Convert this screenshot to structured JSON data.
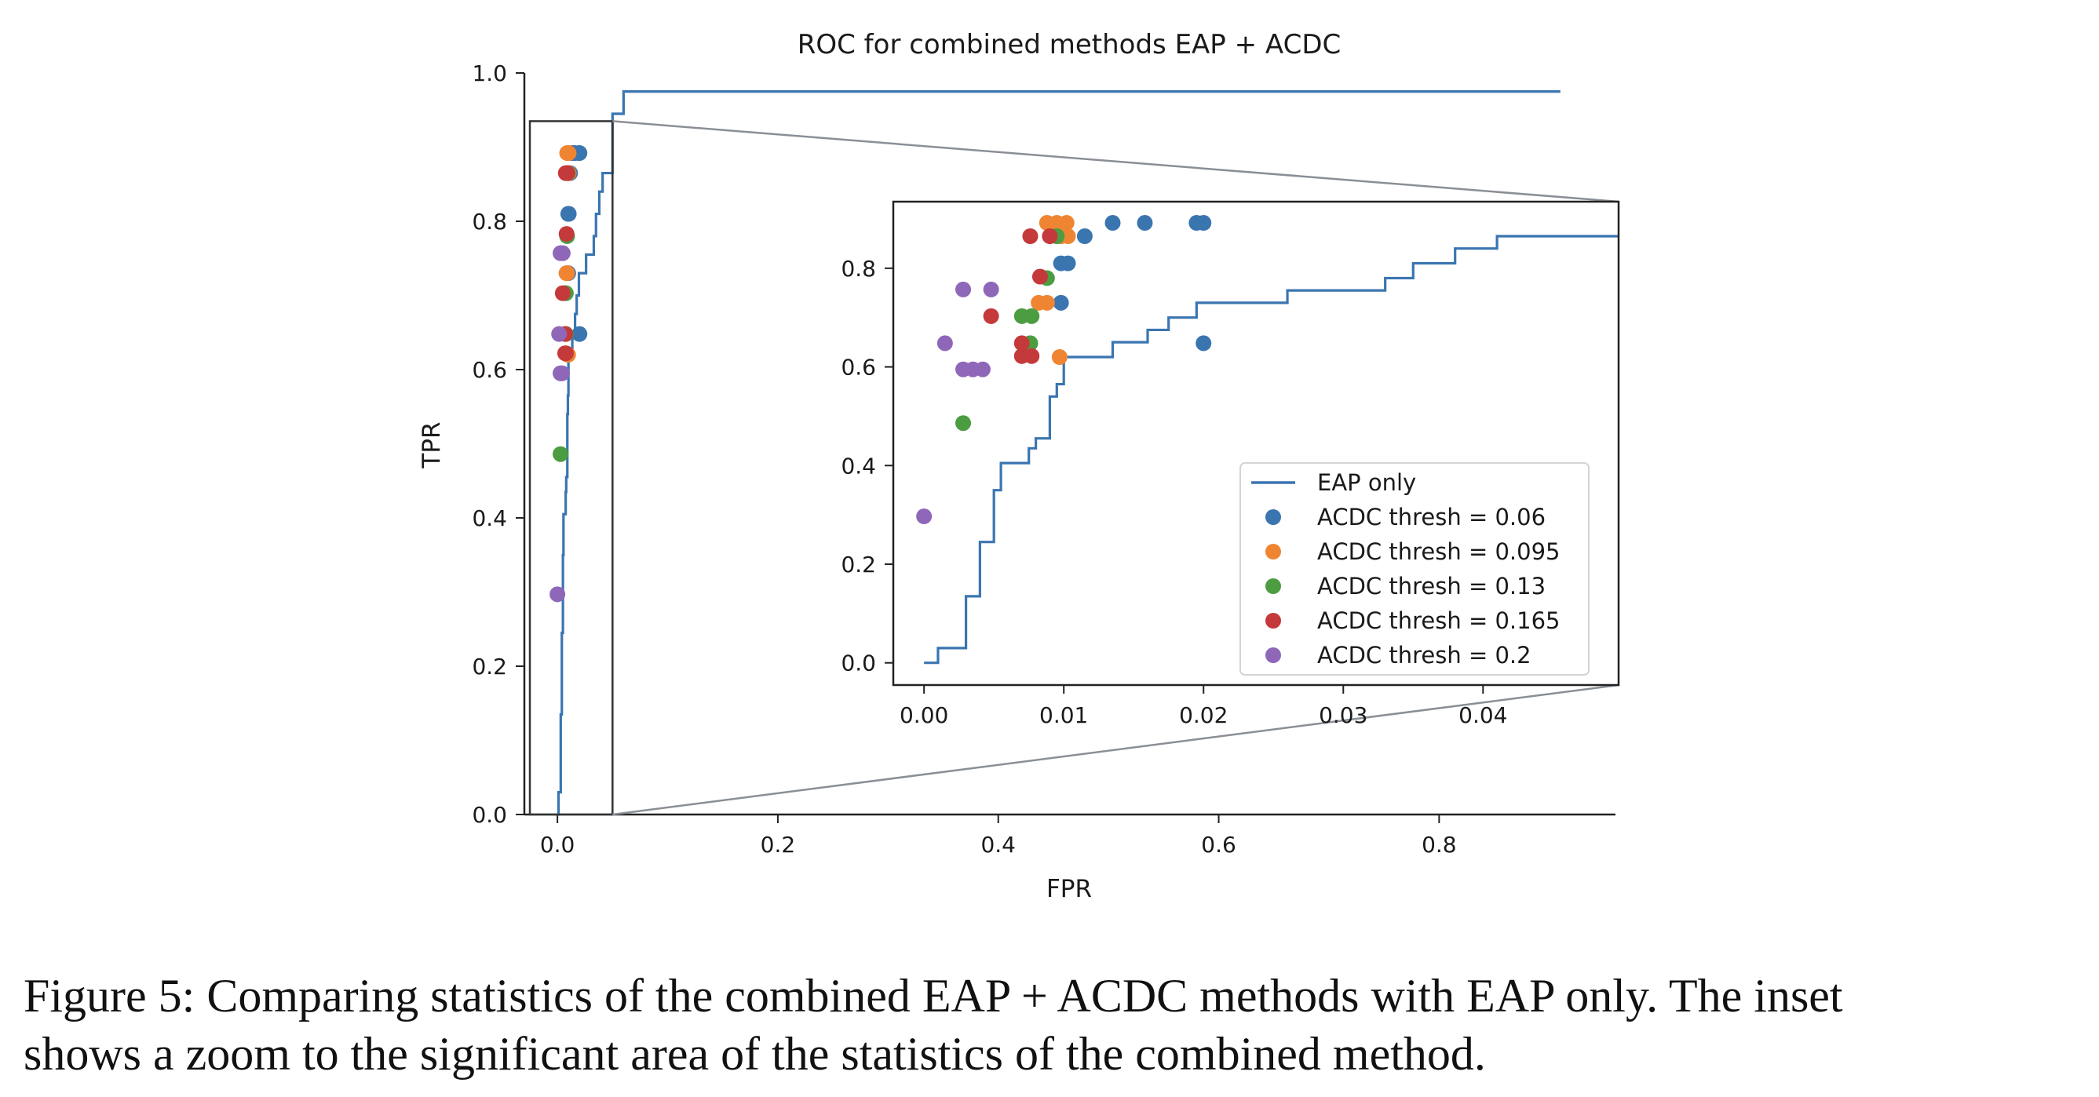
{
  "chart_data": {
    "type": "line",
    "title": "ROC for combined methods EAP + ACDC",
    "xlabel": "FPR",
    "ylabel": "TPR",
    "xlim": [
      -0.03,
      0.96
    ],
    "ylim": [
      0.0,
      1.0
    ],
    "xticks": [
      "0.0",
      "0.2",
      "0.4",
      "0.6",
      "0.8"
    ],
    "yticks": [
      "0.0",
      "0.2",
      "0.4",
      "0.6",
      "0.8",
      "1.0"
    ],
    "grid": false,
    "legend_position": "inset lower-right",
    "series": [
      {
        "name": "EAP only",
        "type": "line",
        "color": "#3a75b0",
        "x": [
          0.0,
          0.001,
          0.001,
          0.003,
          0.003,
          0.004,
          0.004,
          0.005,
          0.005,
          0.0055,
          0.0055,
          0.0075,
          0.0075,
          0.008,
          0.008,
          0.009,
          0.009,
          0.0095,
          0.0095,
          0.01,
          0.01,
          0.0135,
          0.0135,
          0.016,
          0.016,
          0.0175,
          0.0175,
          0.0195,
          0.0195,
          0.026,
          0.026,
          0.033,
          0.033,
          0.035,
          0.035,
          0.038,
          0.038,
          0.041,
          0.041,
          0.045,
          0.045,
          0.05,
          0.05,
          0.06,
          0.06,
          0.1,
          0.1,
          0.91
        ],
        "y": [
          0.0,
          0.0,
          0.03,
          0.03,
          0.135,
          0.135,
          0.245,
          0.245,
          0.35,
          0.35,
          0.405,
          0.405,
          0.435,
          0.435,
          0.455,
          0.455,
          0.54,
          0.54,
          0.565,
          0.565,
          0.62,
          0.62,
          0.65,
          0.65,
          0.675,
          0.675,
          0.7,
          0.7,
          0.73,
          0.73,
          0.755,
          0.755,
          0.78,
          0.78,
          0.81,
          0.81,
          0.84,
          0.84,
          0.865,
          0.865,
          0.865,
          0.865,
          0.945,
          0.945,
          0.975,
          0.975,
          0.975,
          0.975
        ]
      },
      {
        "name": "ACDC thresh = 0.06",
        "type": "scatter",
        "color": "#3a75b0",
        "x": [
          0.0135,
          0.0158,
          0.0195,
          0.02,
          0.0115,
          0.0098,
          0.0103,
          0.0098,
          0.02
        ],
        "y": [
          0.892,
          0.892,
          0.892,
          0.892,
          0.865,
          0.81,
          0.81,
          0.73,
          0.648
        ]
      },
      {
        "name": "ACDC thresh = 0.095",
        "type": "scatter",
        "color": "#ef8532",
        "x": [
          0.0088,
          0.0095,
          0.0102,
          0.0098,
          0.0103,
          0.0082,
          0.0088,
          0.0097
        ],
        "y": [
          0.892,
          0.892,
          0.892,
          0.865,
          0.865,
          0.73,
          0.73,
          0.62
        ]
      },
      {
        "name": "ACDC thresh = 0.13",
        "type": "scatter",
        "color": "#4c9c42",
        "x": [
          0.0095,
          0.0088,
          0.007,
          0.0077,
          0.0076,
          0.0028
        ],
        "y": [
          0.865,
          0.78,
          0.703,
          0.703,
          0.648,
          0.486
        ]
      },
      {
        "name": "ACDC thresh = 0.165",
        "type": "scatter",
        "color": "#c4393a",
        "x": [
          0.0076,
          0.009,
          0.0083,
          0.0048,
          0.007,
          0.007,
          0.0077
        ],
        "y": [
          0.865,
          0.865,
          0.783,
          0.703,
          0.648,
          0.622,
          0.622
        ]
      },
      {
        "name": "ACDC thresh = 0.2",
        "type": "scatter",
        "color": "#8f67b8",
        "x": [
          0.0028,
          0.0048,
          0.0015,
          0.0028,
          0.0035,
          0.0042,
          0.0
        ],
        "y": [
          0.757,
          0.757,
          0.648,
          0.595,
          0.595,
          0.595,
          0.297
        ]
      }
    ],
    "inset": {
      "xlim": [
        -0.0022,
        0.0497
      ],
      "ylim": [
        -0.045,
        0.935
      ],
      "xticks": [
        "0.00",
        "0.01",
        "0.02",
        "0.03",
        "0.04"
      ],
      "yticks": [
        "0.0",
        "0.2",
        "0.4",
        "0.6",
        "0.8"
      ],
      "legend": [
        "EAP only",
        "ACDC thresh = 0.06",
        "ACDC thresh = 0.095",
        "ACDC thresh = 0.13",
        "ACDC thresh = 0.165",
        "ACDC thresh = 0.2"
      ]
    }
  },
  "caption": {
    "line1": "Figure 5: Comparing statistics of the combined EAP + ACDC methods with EAP only. The inset",
    "line2": "shows a zoom to the significant area of the statistics of the combined method."
  }
}
